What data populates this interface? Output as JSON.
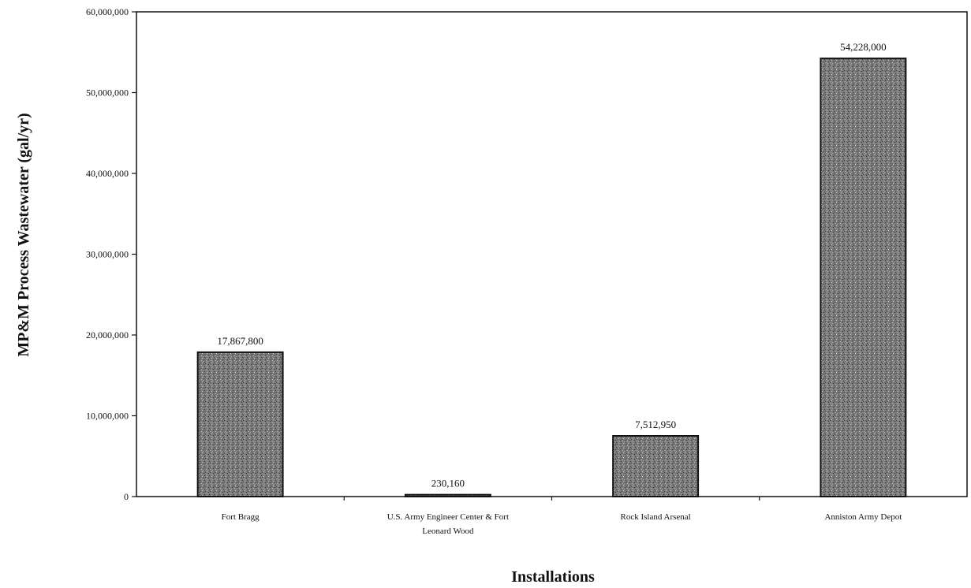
{
  "chart_data": {
    "type": "bar",
    "categories": [
      [
        "Fort Bragg"
      ],
      [
        "U.S. Army Engineer Center & Fort",
        "Leonard Wood"
      ],
      [
        "Rock Island Arsenal"
      ],
      [
        "Anniston Army Depot"
      ]
    ],
    "values": [
      17867800,
      230160,
      7512950,
      54228000
    ],
    "data_labels": [
      "17,867,800",
      "230,160",
      "7,512,950",
      "54,228,000"
    ],
    "xlabel": "Installations",
    "ylabel": "MP&M Process Wastewater (gal/yr)",
    "ylim": [
      0,
      60000000
    ],
    "yticks": [
      0,
      10000000,
      20000000,
      30000000,
      40000000,
      50000000,
      60000000
    ],
    "ytick_labels": [
      "0",
      "10,000,000",
      "20,000,000",
      "30,000,000",
      "40,000,000",
      "50,000,000",
      "60,000,000"
    ],
    "grid": false,
    "bar_color": "#6e6e6e",
    "bar_edge_color": "#111111"
  }
}
